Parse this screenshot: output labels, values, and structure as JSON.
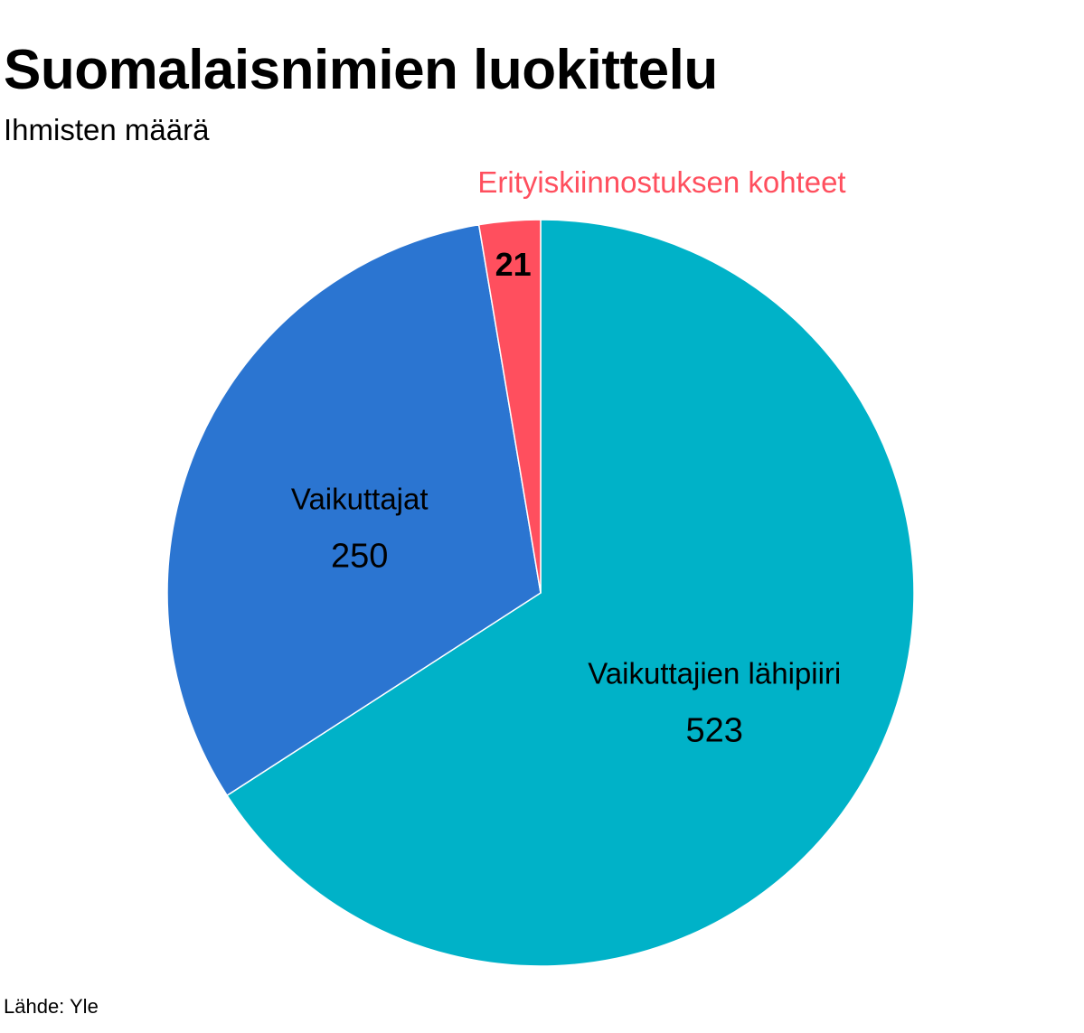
{
  "header": {
    "title": "Suomalaisnimien luokittelu",
    "subtitle": "Ihmisten määrä"
  },
  "footer": {
    "source": "Lähde: Yle"
  },
  "chart_data": {
    "type": "pie",
    "title": "Suomalaisnimien luokittelu",
    "subtitle": "Ihmisten määrä",
    "start": "12 o'clock",
    "direction": "clockwise",
    "slices": [
      {
        "label": "Vaikuttajien lähipiiri",
        "value": 523,
        "color": "#00b2c8",
        "label_color": "#000000",
        "label_placement": "inside"
      },
      {
        "label": "Vaikuttajat",
        "value": 250,
        "color": "#2b75d1",
        "label_color": "#000000",
        "label_placement": "inside"
      },
      {
        "label": "Erityiskiinnostuksen kohteet",
        "value": 21,
        "color": "#ff4f5e",
        "label_color": "#ff4f5e",
        "label_placement": "outside"
      }
    ]
  }
}
